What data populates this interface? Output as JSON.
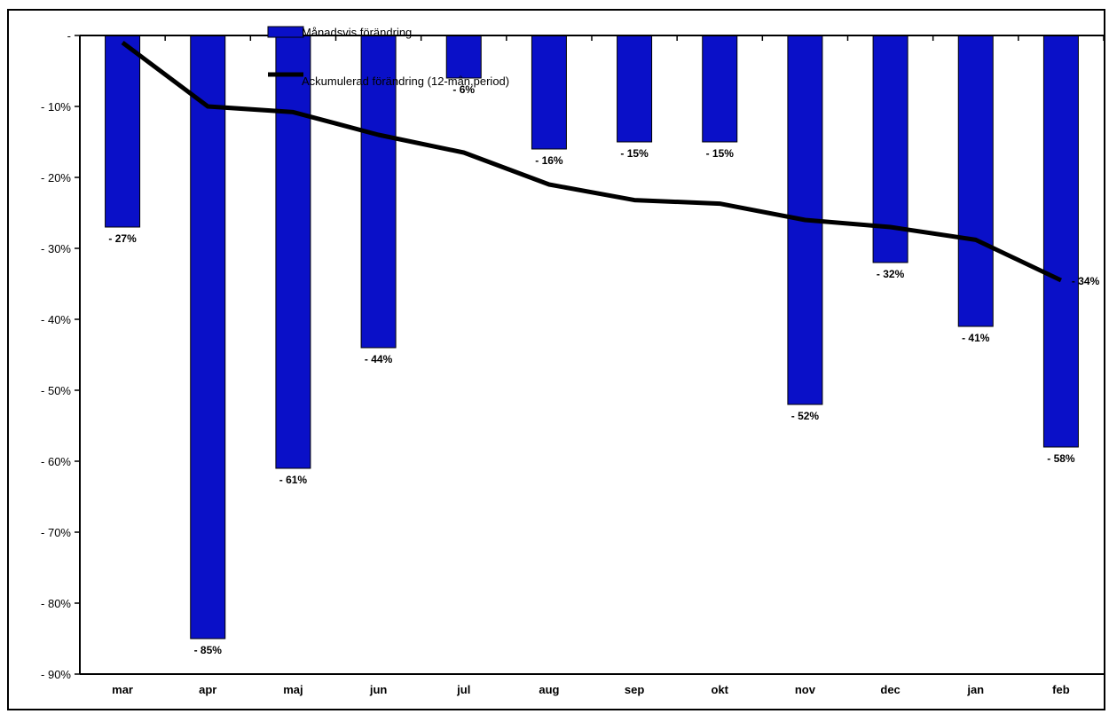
{
  "chart_data": {
    "type": "bar",
    "categories": [
      "mar",
      "apr",
      "maj",
      "jun",
      "jul",
      "aug",
      "sep",
      "okt",
      "nov",
      "dec",
      "jan",
      "feb"
    ],
    "series": [
      {
        "name": "Månadsvis förändring",
        "type": "bar",
        "color": "#0a10c8",
        "values": [
          -27,
          -85,
          -61,
          -44,
          -6,
          -16,
          -15,
          -15,
          -52,
          -32,
          -41,
          -58
        ],
        "labels": [
          "- 27%",
          "- 85%",
          "- 61%",
          "- 44%",
          "- 6%",
          "- 16%",
          "- 15%",
          "- 15%",
          "- 52%",
          "- 32%",
          "- 41%",
          "- 58%"
        ]
      },
      {
        "name": "Ackumulerad förändring (12-mån.period)",
        "type": "line",
        "color": "#000000",
        "values": [
          -1,
          -10,
          -10.8,
          -14,
          -16.5,
          -21,
          -23.2,
          -23.7,
          -26,
          -27,
          -28.8,
          -34.5
        ],
        "end_label": "- 34%"
      }
    ],
    "y_ticks": [
      {
        "value": 0,
        "label": "-"
      },
      {
        "value": -10,
        "label": "- 10%"
      },
      {
        "value": -20,
        "label": "- 20%"
      },
      {
        "value": -30,
        "label": "- 30%"
      },
      {
        "value": -40,
        "label": "- 40%"
      },
      {
        "value": -50,
        "label": "- 50%"
      },
      {
        "value": -60,
        "label": "- 60%"
      },
      {
        "value": -70,
        "label": "- 70%"
      },
      {
        "value": -80,
        "label": "- 80%"
      },
      {
        "value": -90,
        "label": "- 90%"
      }
    ],
    "ylim": [
      -90,
      0
    ],
    "title": "",
    "xlabel": "",
    "ylabel": "",
    "grid": false,
    "legend_position": "top-center"
  }
}
